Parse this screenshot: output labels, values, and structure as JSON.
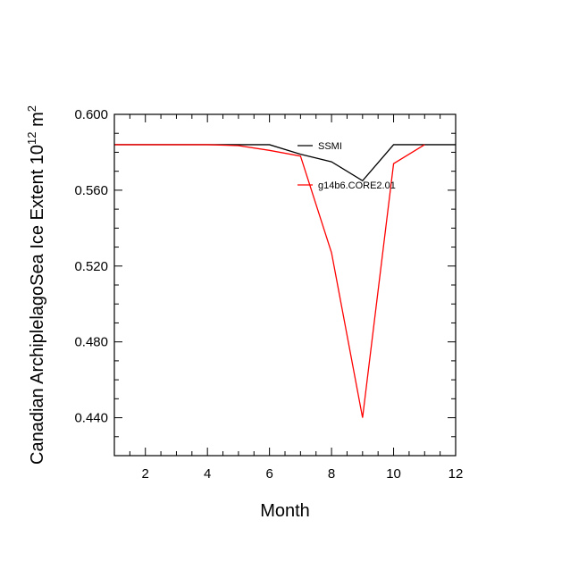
{
  "chart_data": {
    "type": "line",
    "title": "",
    "xlabel": "Month",
    "ylabel_main": "Canadian ArchiplelagoSea Ice Extent 10",
    "ylabel_sup": "12",
    "ylabel_unit": " m",
    "ylabel_unit_sup": "2",
    "xlim": [
      1,
      12
    ],
    "ylim": [
      0.42,
      0.6
    ],
    "xticks": [
      2,
      4,
      6,
      8,
      10,
      12
    ],
    "xtick_labels": [
      "2",
      "4",
      "6",
      "8",
      "10",
      "12"
    ],
    "yticks": [
      0.44,
      0.48,
      0.52,
      0.56,
      0.6
    ],
    "ytick_labels": [
      "0.440",
      "0.480",
      "0.520",
      "0.560",
      "0.600"
    ],
    "grid": false,
    "legend_position": "top-right-inside",
    "series": [
      {
        "name": "SSMI",
        "color": "#000000",
        "x": [
          1,
          2,
          3,
          4,
          5,
          6,
          7,
          8,
          9,
          10,
          11,
          12
        ],
        "values": [
          0.584,
          0.584,
          0.584,
          0.584,
          0.584,
          0.584,
          0.579,
          0.575,
          0.565,
          0.584,
          0.584,
          0.584
        ]
      },
      {
        "name": "g14b6.CORE2.01",
        "color": "#ff0000",
        "x": [
          1,
          2,
          3,
          4,
          5,
          6,
          7,
          8,
          9,
          10,
          11
        ],
        "values": [
          0.584,
          0.584,
          0.584,
          0.584,
          0.5835,
          0.581,
          0.578,
          0.527,
          0.44,
          0.574,
          0.584
        ]
      }
    ]
  }
}
